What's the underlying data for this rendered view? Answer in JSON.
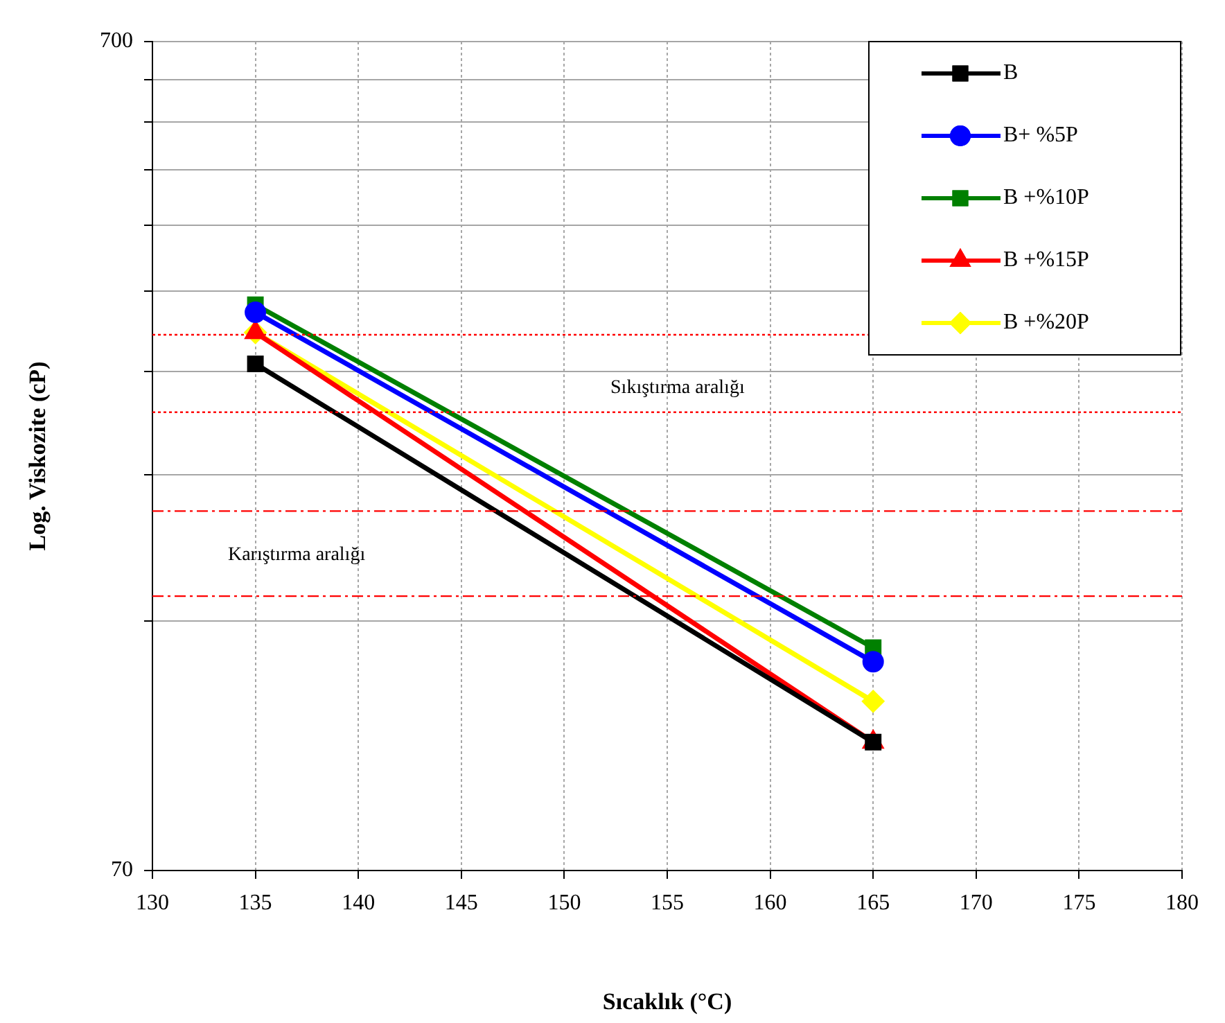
{
  "chart_data": {
    "type": "line",
    "xlabel": "Sıcaklık (°C)",
    "ylabel": "Log. Viskozite (cP)",
    "x": [
      135,
      165
    ],
    "series": [
      {
        "name": "B",
        "color": "#000000",
        "marker": "square",
        "values": [
          286,
          100
        ]
      },
      {
        "name": "B+ %5P",
        "color": "#0000ff",
        "marker": "circle",
        "values": [
          330,
          125
        ]
      },
      {
        "name": "B +%10P",
        "color": "#008000",
        "marker": "square",
        "values": [
          337,
          130
        ]
      },
      {
        "name": "B +%15P",
        "color": "#ff0000",
        "marker": "triangle",
        "values": [
          312,
          100
        ]
      },
      {
        "name": "B +%20P",
        "color": "#ffff00",
        "marker": "diamond",
        "values": [
          312,
          112
        ]
      }
    ],
    "xlim": [
      130,
      180
    ],
    "xticks": [
      130,
      135,
      140,
      145,
      150,
      155,
      160,
      165,
      170,
      175,
      180
    ],
    "log": "y",
    "ylim": [
      70,
      700
    ],
    "yticks": [
      70,
      {
        "value": 140,
        "label": null
      },
      {
        "value": 210,
        "label": null
      },
      {
        "value": 280,
        "label": null
      },
      {
        "value": 350,
        "label": null
      },
      {
        "value": 420,
        "label": null
      },
      {
        "value": 490,
        "label": null
      },
      {
        "value": 560,
        "label": null
      },
      {
        "value": 630,
        "label": null
      },
      700
    ],
    "grid": true,
    "legend": "top right",
    "ref_lines": [
      {
        "axis": "y",
        "value": 310,
        "color": "#ff0000",
        "line_style": "dotted"
      },
      {
        "axis": "y",
        "value": 250,
        "color": "#ff0000",
        "line_style": "dotted"
      },
      {
        "axis": "y",
        "value": 190,
        "color": "#ff0000",
        "line_style": "dashed"
      },
      {
        "axis": "y",
        "value": 150,
        "color": "#ff0000",
        "line_style": "dashed"
      }
    ],
    "annotations": [
      "Sıkıştırma aralığı",
      "Karıştırma aralığı"
    ]
  }
}
